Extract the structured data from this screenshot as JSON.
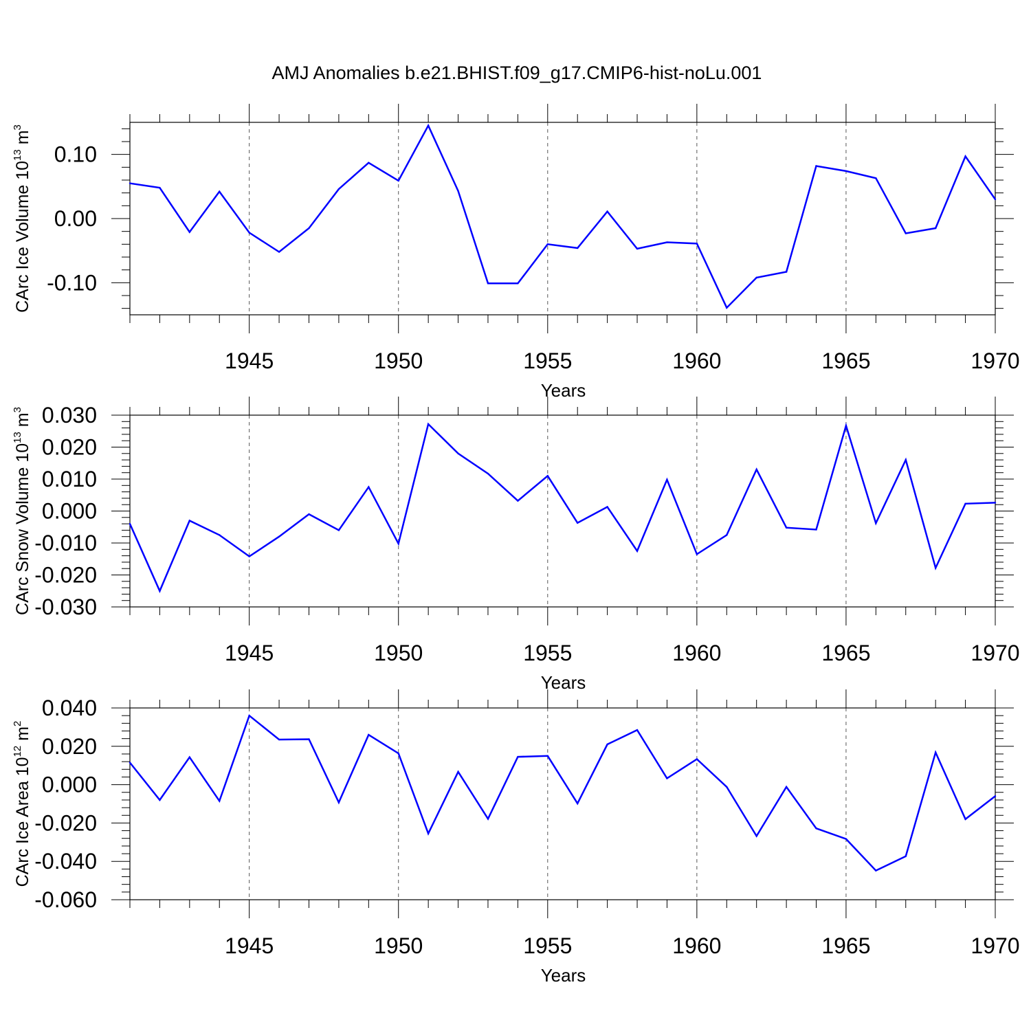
{
  "title": "AMJ Anomalies b.e21.BHIST.f09_g17.CMIP6-hist-noLu.001",
  "colors": {
    "line": "#0000ff",
    "axis": "#000000",
    "grid": "#555555",
    "background": "#ffffff"
  },
  "chart_data": [
    {
      "type": "line",
      "ylabel_main": "CArc Ice Volume 10",
      "ylabel_exp": "13",
      "ylabel_unit": " m",
      "ylabel_unit_exp": "3",
      "xlabel": "Years",
      "xlim": [
        1941,
        1970
      ],
      "ylim": [
        -0.15,
        0.15
      ],
      "yticks": [
        -0.1,
        0.0,
        0.1
      ],
      "ytick_labels": [
        "-0.10",
        "0.00",
        "0.10"
      ],
      "xticks": [
        1945,
        1950,
        1955,
        1960,
        1965,
        1970
      ],
      "xtick_labels": [
        "1945",
        "1950",
        "1955",
        "1960",
        "1965",
        "1970"
      ],
      "x": [
        1941,
        1942,
        1943,
        1944,
        1945,
        1946,
        1947,
        1948,
        1949,
        1950,
        1951,
        1952,
        1953,
        1954,
        1955,
        1956,
        1957,
        1958,
        1959,
        1960,
        1961,
        1962,
        1963,
        1964,
        1965,
        1966,
        1967,
        1968,
        1969,
        1970
      ],
      "values": [
        0.055,
        0.048,
        -0.021,
        0.042,
        -0.022,
        -0.052,
        -0.015,
        0.046,
        0.087,
        0.059,
        0.145,
        0.043,
        -0.101,
        -0.101,
        -0.04,
        -0.046,
        0.011,
        -0.047,
        -0.037,
        -0.039,
        -0.139,
        -0.092,
        -0.083,
        0.082,
        0.074,
        0.063,
        -0.023,
        -0.015,
        0.097,
        0.03
      ]
    },
    {
      "type": "line",
      "ylabel_main": "CArc Snow Volume 10",
      "ylabel_exp": "13",
      "ylabel_unit": " m",
      "ylabel_unit_exp": "3",
      "xlabel": "Years",
      "xlim": [
        1941,
        1970
      ],
      "ylim": [
        -0.03,
        0.03
      ],
      "yticks": [
        -0.03,
        -0.02,
        -0.01,
        0.0,
        0.01,
        0.02,
        0.03
      ],
      "ytick_labels": [
        "-0.030",
        "-0.020",
        "-0.010",
        "0.000",
        "0.010",
        "0.020",
        "0.030"
      ],
      "xticks": [
        1945,
        1950,
        1955,
        1960,
        1965,
        1970
      ],
      "xtick_labels": [
        "1945",
        "1950",
        "1955",
        "1960",
        "1965",
        "1970"
      ],
      "x": [
        1941,
        1942,
        1943,
        1944,
        1945,
        1946,
        1947,
        1948,
        1949,
        1950,
        1951,
        1952,
        1953,
        1954,
        1955,
        1956,
        1957,
        1958,
        1959,
        1960,
        1961,
        1962,
        1963,
        1964,
        1965,
        1966,
        1967,
        1968,
        1969,
        1970
      ],
      "values": [
        -0.004,
        -0.025,
        -0.003,
        -0.0075,
        -0.0142,
        -0.008,
        -0.001,
        -0.006,
        0.0075,
        -0.0102,
        0.0272,
        0.018,
        0.0117,
        0.0032,
        0.011,
        -0.0037,
        0.0013,
        -0.0125,
        0.0098,
        -0.0135,
        -0.0075,
        0.013,
        -0.0052,
        -0.0058,
        0.0267,
        -0.0038,
        0.016,
        -0.0178,
        0.0023,
        0.0026
      ]
    },
    {
      "type": "line",
      "ylabel_main": "CArc Ice Area 10",
      "ylabel_exp": "12",
      "ylabel_unit": " m",
      "ylabel_unit_exp": "2",
      "xlabel": "Years",
      "xlim": [
        1941,
        1970
      ],
      "ylim": [
        -0.06,
        0.04
      ],
      "yticks": [
        -0.06,
        -0.04,
        -0.02,
        0.0,
        0.02,
        0.04
      ],
      "ytick_labels": [
        "-0.060",
        "-0.040",
        "-0.020",
        "0.000",
        "0.020",
        "0.040"
      ],
      "xticks": [
        1945,
        1950,
        1955,
        1960,
        1965,
        1970
      ],
      "xtick_labels": [
        "1945",
        "1950",
        "1955",
        "1960",
        "1965",
        "1970"
      ],
      "x": [
        1941,
        1942,
        1943,
        1944,
        1945,
        1946,
        1947,
        1948,
        1949,
        1950,
        1951,
        1952,
        1953,
        1954,
        1955,
        1956,
        1957,
        1958,
        1959,
        1960,
        1961,
        1962,
        1963,
        1964,
        1965,
        1966,
        1967,
        1968,
        1969,
        1970
      ],
      "values": [
        0.0115,
        -0.008,
        0.0143,
        -0.0085,
        0.036,
        0.0235,
        0.0237,
        -0.0093,
        0.026,
        0.0163,
        -0.0255,
        0.0067,
        -0.0178,
        0.0145,
        0.015,
        -0.0098,
        0.021,
        0.0285,
        0.0033,
        0.0133,
        -0.0012,
        -0.0268,
        -0.0012,
        -0.0228,
        -0.0283,
        -0.0448,
        -0.0373,
        0.0168,
        -0.018,
        -0.006
      ]
    }
  ]
}
